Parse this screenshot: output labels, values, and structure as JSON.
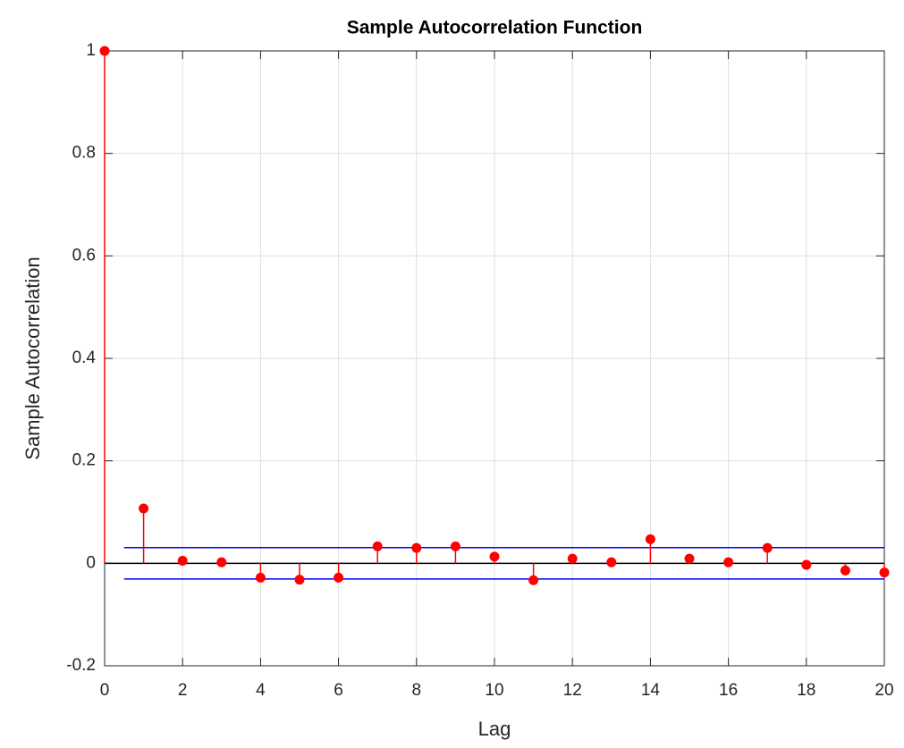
{
  "chart_data": {
    "type": "stem",
    "title": "Sample Autocorrelation Function",
    "x_label": "Lag",
    "y_label": "Sample Autocorrelation",
    "x": [
      0,
      1,
      2,
      3,
      4,
      5,
      6,
      7,
      8,
      9,
      10,
      11,
      12,
      13,
      14,
      15,
      16,
      17,
      18,
      19,
      20
    ],
    "values": [
      1,
      0.107,
      0.005,
      0.002,
      -0.028,
      -0.032,
      -0.028,
      0.033,
      0.03,
      0.033,
      0.013,
      -0.033,
      0.009,
      0.002,
      0.047,
      0.009,
      0.002,
      0.03,
      -0.003,
      -0.014,
      -0.018
    ],
    "color": "#ff0000",
    "bounds": [
      0.0307,
      -0.0307
    ],
    "bounds_xlim": [
      0.5,
      20
    ],
    "bounds_color": "#0000ff",
    "xlim": [
      0,
      20
    ],
    "xticks": [
      0,
      2,
      4,
      6,
      8,
      10,
      12,
      14,
      16,
      18,
      20
    ],
    "ylim": [
      -0.2,
      1
    ],
    "yticks": [
      -0.2,
      0,
      0.2,
      0.4,
      0.6,
      0.8,
      1
    ],
    "grid": true
  }
}
